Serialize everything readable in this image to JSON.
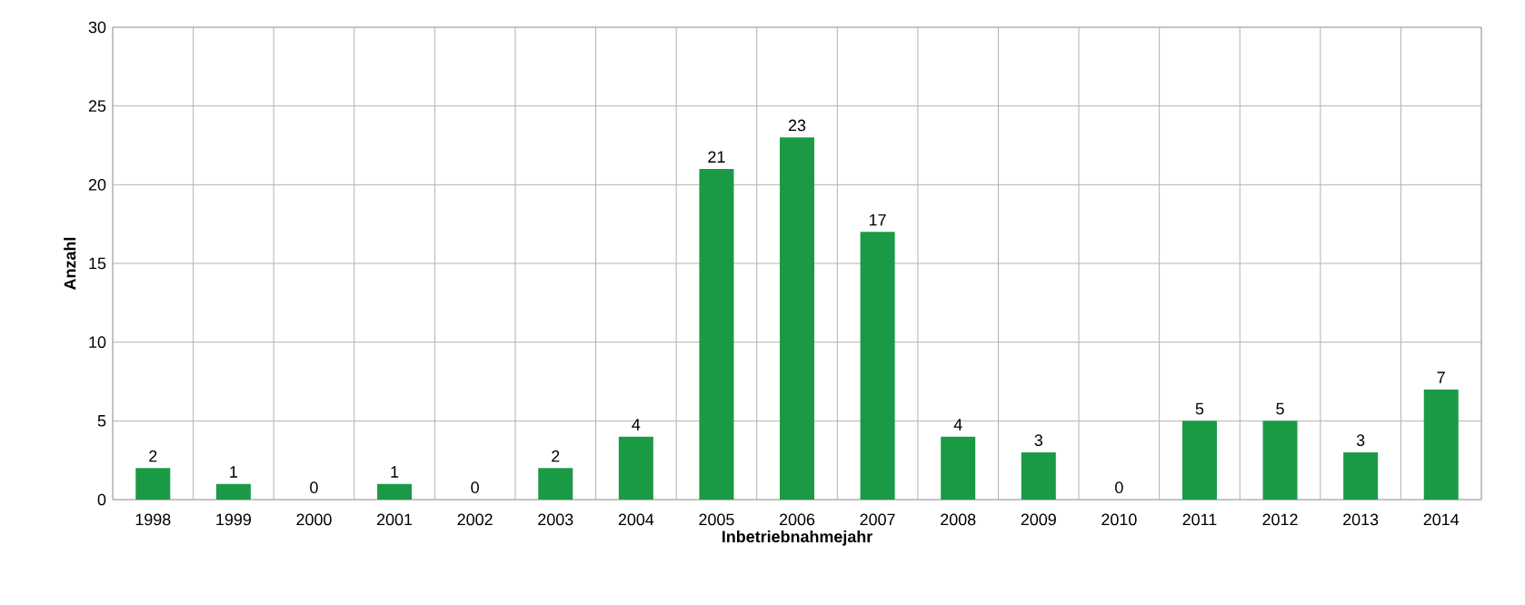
{
  "chart_data": {
    "type": "bar",
    "xlabel": "Inbetriebnahmejahr",
    "ylabel": "Anzahl",
    "categories": [
      "1998",
      "1999",
      "2000",
      "2001",
      "2002",
      "2003",
      "2004",
      "2005",
      "2006",
      "2007",
      "2008",
      "2009",
      "2010",
      "2011",
      "2012",
      "2013",
      "2014"
    ],
    "values": [
      2,
      1,
      0,
      1,
      0,
      2,
      4,
      21,
      23,
      17,
      4,
      3,
      0,
      5,
      5,
      3,
      7
    ],
    "color": "#1b9a46",
    "ylim": [
      0,
      30
    ],
    "yticks": [
      0,
      5,
      10,
      15,
      20,
      25,
      30
    ],
    "grid": true,
    "data_labels": true
  }
}
